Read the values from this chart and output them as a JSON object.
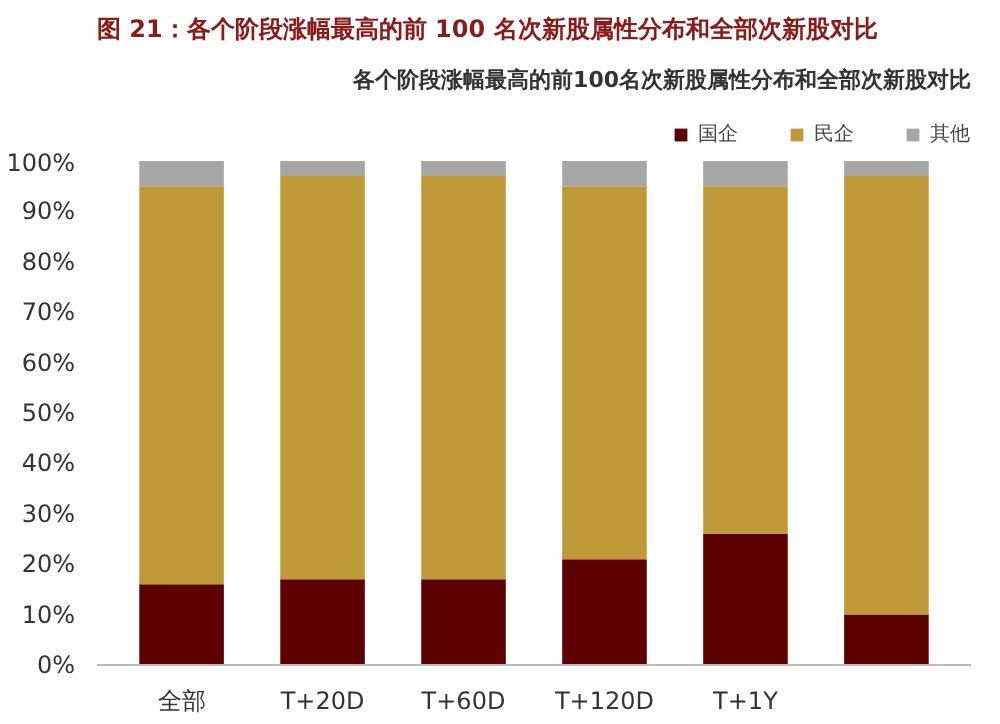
{
  "chart_data": {
    "type": "bar",
    "stacked": true,
    "title": "图 21：各个阶段涨幅最高的前 100 名次新股属性分布和全部次新股对比",
    "subtitle": "各个阶段涨幅最高的前100名次新股属性分布和全部次新股对比",
    "categories": [
      "全部",
      "T+20D",
      "T+60D",
      "T+120D",
      "T+1Y",
      null
    ],
    "series": [
      {
        "name": "国企",
        "color": "#5c0000",
        "values": [
          16,
          17,
          17,
          21,
          26,
          10
        ]
      },
      {
        "name": "民企",
        "color": "#c09a38",
        "values": [
          79,
          80,
          80,
          74,
          69,
          87
        ]
      },
      {
        "name": "其他",
        "color": "#a6a6a6",
        "values": [
          5,
          3,
          3,
          5,
          5,
          3
        ]
      }
    ],
    "ylim": [
      0,
      100
    ],
    "yticks": [
      {
        "value": 0,
        "label": "0%"
      },
      {
        "value": 10,
        "label": "10%"
      },
      {
        "value": 20,
        "label": "20%"
      },
      {
        "value": 30,
        "label": "30%"
      },
      {
        "value": 40,
        "label": "40%"
      },
      {
        "value": 50,
        "label": "50%"
      },
      {
        "value": 60,
        "label": "60%"
      },
      {
        "value": 70,
        "label": "70%"
      },
      {
        "value": 80,
        "label": "80%"
      },
      {
        "value": 90,
        "label": "90%"
      },
      {
        "value": 100,
        "label": "100%"
      }
    ],
    "legend": "top right",
    "grid": false
  }
}
